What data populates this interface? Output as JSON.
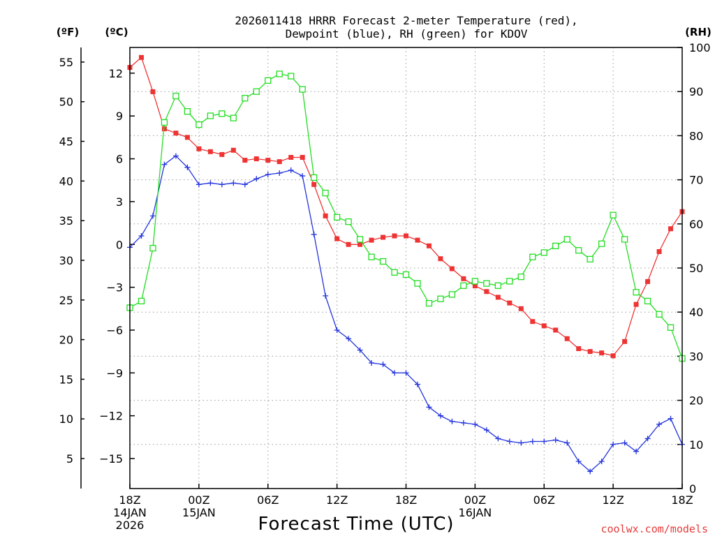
{
  "chart_data": {
    "type": "line",
    "title_lines": [
      "2026011418 HRRR Forecast 2-meter Temperature (red),",
      "Dewpoint (blue), RH (green) for KDOV"
    ],
    "xlabel": "Forecast Time (UTC)",
    "credit": "coolwx.com/models",
    "unit_labels": {
      "fahrenheit": "(ºF)",
      "celsius": "(ºC)",
      "rh": "(RH)"
    },
    "x_range_hours": [
      0,
      48
    ],
    "x_ticks": [
      {
        "hour": 0,
        "lines": [
          "18Z",
          "14JAN",
          "2026"
        ]
      },
      {
        "hour": 6,
        "lines": [
          "00Z",
          "15JAN"
        ]
      },
      {
        "hour": 12,
        "lines": [
          "06Z"
        ]
      },
      {
        "hour": 18,
        "lines": [
          "12Z"
        ]
      },
      {
        "hour": 24,
        "lines": [
          "18Z"
        ]
      },
      {
        "hour": 30,
        "lines": [
          "00Z",
          "16JAN"
        ]
      },
      {
        "hour": 36,
        "lines": [
          "06Z"
        ]
      },
      {
        "hour": 42,
        "lines": [
          "12Z"
        ]
      },
      {
        "hour": 48,
        "lines": [
          "18Z"
        ]
      }
    ],
    "celsius_axis": {
      "range": [
        -17.1,
        13.8
      ],
      "ticks": [
        12,
        9,
        6,
        3,
        0,
        -3,
        -6,
        -9,
        -12,
        -15
      ],
      "labels": [
        "12",
        "9",
        "6",
        "3",
        "0",
        "−3",
        "−6",
        "−9",
        "−12",
        "−15"
      ]
    },
    "fahrenheit_axis": {
      "ticks": [
        55,
        50,
        45,
        40,
        35,
        30,
        25,
        20,
        15,
        10,
        5
      ],
      "labels": [
        "55",
        "50",
        "45",
        "40",
        "35",
        "30",
        "25",
        "20",
        "15",
        "10",
        "5"
      ]
    },
    "rh_axis": {
      "range": [
        0,
        100
      ],
      "ticks": [
        0,
        10,
        20,
        30,
        40,
        50,
        60,
        70,
        80,
        90,
        100
      ],
      "labels": [
        "0",
        "10",
        "20",
        "30",
        "40",
        "50",
        "60",
        "70",
        "80",
        "90",
        "100"
      ]
    },
    "series": [
      {
        "name": "2-meter Temperature",
        "axis": "celsius",
        "color": "#ee3333",
        "marker": "filled-square",
        "values": [
          12.4,
          13.1,
          10.7,
          8.1,
          7.8,
          7.5,
          6.7,
          6.5,
          6.3,
          6.6,
          5.9,
          6.0,
          5.9,
          5.8,
          6.1,
          6.1,
          4.2,
          2.0,
          0.4,
          0.0,
          0.0,
          0.3,
          0.5,
          0.6,
          0.6,
          0.3,
          -0.1,
          -1.0,
          -1.7,
          -2.4,
          -2.9,
          -3.3,
          -3.7,
          -4.1,
          -4.5,
          -5.4,
          -5.7,
          -6.0,
          -6.6,
          -7.3,
          -7.5,
          -7.6,
          -7.8,
          -6.8,
          -4.2,
          -2.6,
          -0.5,
          1.1,
          2.3
        ]
      },
      {
        "name": "Dewpoint",
        "axis": "celsius",
        "color": "#2233dd",
        "marker": "plus",
        "values": [
          -0.2,
          0.6,
          2.0,
          5.6,
          6.2,
          5.4,
          4.2,
          4.3,
          4.2,
          4.3,
          4.2,
          4.6,
          4.9,
          5.0,
          5.2,
          4.8,
          0.7,
          -3.6,
          -6.0,
          -6.6,
          -7.4,
          -8.3,
          -8.4,
          -9.0,
          -9.0,
          -9.8,
          -11.4,
          -12.0,
          -12.4,
          -12.5,
          -12.6,
          -13.0,
          -13.6,
          -13.8,
          -13.9,
          -13.8,
          -13.8,
          -13.7,
          -13.9,
          -15.2,
          -15.9,
          -15.2,
          -14.0,
          -13.9,
          -14.5,
          -13.6,
          -12.6,
          -12.2,
          -14.0
        ]
      },
      {
        "name": "RH",
        "axis": "rh",
        "color": "#22dd22",
        "marker": "open-square",
        "values": [
          41,
          42.5,
          54.5,
          83,
          89,
          85.5,
          82.5,
          84.5,
          85,
          84,
          88.5,
          90,
          92.5,
          94,
          93.5,
          90.5,
          70.5,
          67,
          61.5,
          60.5,
          56.5,
          52.5,
          51.5,
          49,
          48.5,
          46.5,
          42,
          43,
          44,
          46,
          47,
          46.5,
          46,
          47,
          48,
          52.5,
          53.5,
          55,
          56.5,
          54,
          52,
          55.5,
          62,
          56.5,
          44.5,
          42.5,
          39.5,
          36.5,
          29.5
        ]
      }
    ]
  }
}
